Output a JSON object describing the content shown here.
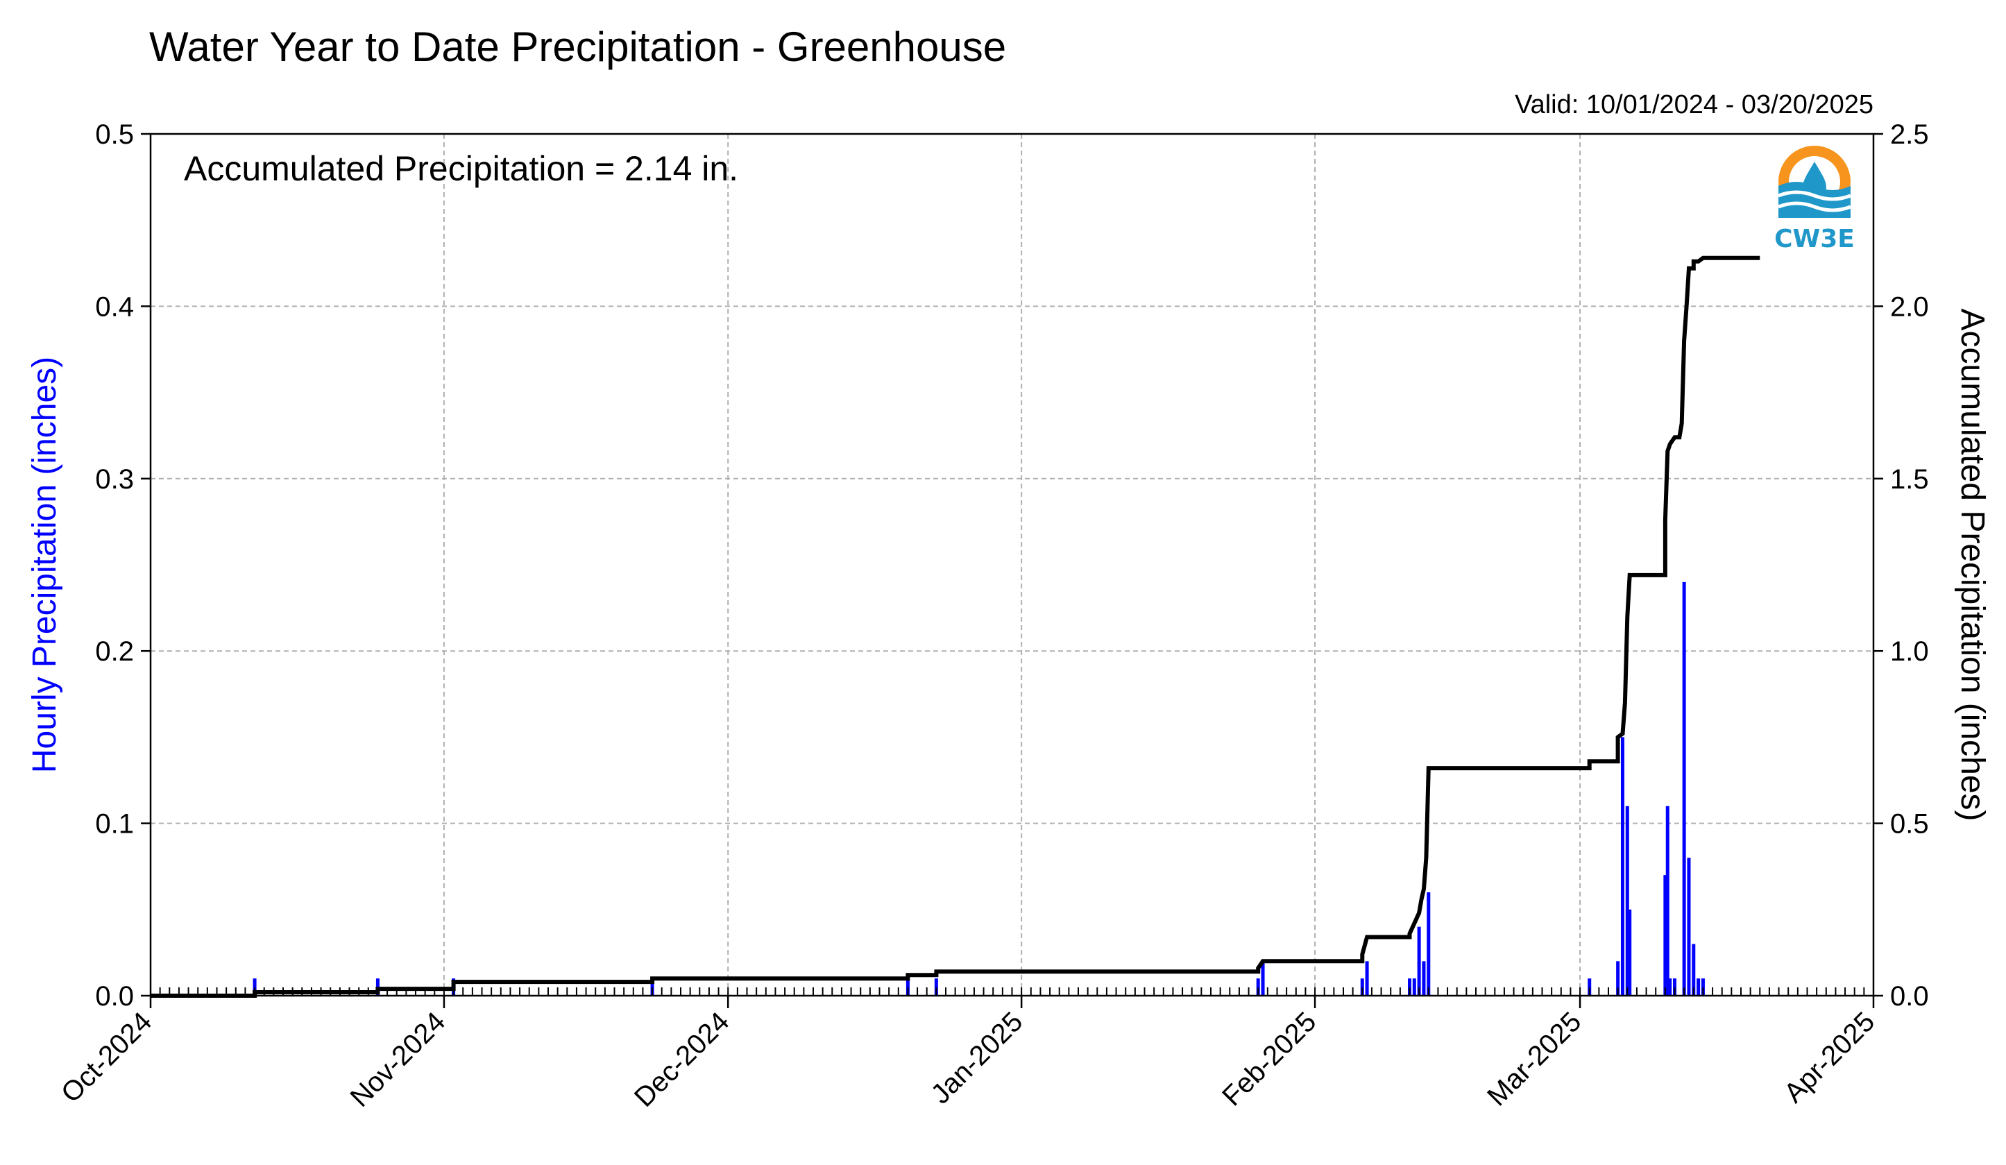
{
  "chart_data": {
    "type": "bar",
    "title": "Water Year to Date Precipitation - Greenhouse",
    "valid_text": "Valid: 10/01/2024 - 03/20/2025",
    "annotation": "Accumulated Precipitation = 2.14 in.",
    "logo_text": "CW3E",
    "ylabel_left": "Hourly Precipitation (inches)",
    "ylabel_right": "Accumulated Precipitation (inches)",
    "x_start": "2024-10-01",
    "x_end": "2025-04-01",
    "x_ticks": [
      {
        "date": "2024-10-01",
        "label": "Oct-2024"
      },
      {
        "date": "2024-11-01",
        "label": "Nov-2024"
      },
      {
        "date": "2024-12-01",
        "label": "Dec-2024"
      },
      {
        "date": "2025-01-01",
        "label": "Jan-2025"
      },
      {
        "date": "2025-02-01",
        "label": "Feb-2025"
      },
      {
        "date": "2025-03-01",
        "label": "Mar-2025"
      },
      {
        "date": "2025-04-01",
        "label": "Apr-2025"
      }
    ],
    "ylim_left": [
      0,
      0.5
    ],
    "yticks_left": [
      {
        "value": 0.0,
        "label": "0.0"
      },
      {
        "value": 0.1,
        "label": "0.1"
      },
      {
        "value": 0.2,
        "label": "0.2"
      },
      {
        "value": 0.3,
        "label": "0.3"
      },
      {
        "value": 0.4,
        "label": "0.4"
      },
      {
        "value": 0.5,
        "label": "0.5"
      }
    ],
    "ylim_right": [
      0,
      2.5
    ],
    "yticks_right": [
      {
        "value": 0.0,
        "label": "0.0"
      },
      {
        "value": 0.5,
        "label": "0.5"
      },
      {
        "value": 1.0,
        "label": "1.0"
      },
      {
        "value": 1.5,
        "label": "1.5"
      },
      {
        "value": 2.0,
        "label": "2.0"
      },
      {
        "value": 2.5,
        "label": "2.5"
      }
    ],
    "grid": true,
    "hourly_color": "#0000ff",
    "accum_color": "#000000",
    "left_label_color": "#0000ff",
    "series": [
      {
        "kind": "bars",
        "points": [
          {
            "date": "2024-10-12",
            "value": 0.01
          },
          {
            "date": "2024-10-25",
            "value": 0.01
          },
          {
            "date": "2024-11-02",
            "value": 0.01
          },
          {
            "date": "2024-11-23",
            "value": 0.01
          },
          {
            "date": "2024-12-20",
            "value": 0.01
          },
          {
            "date": "2024-12-23",
            "value": 0.01
          },
          {
            "date": "2025-01-26",
            "value": 0.01
          },
          {
            "date": "2025-01-26T12:00",
            "value": 0.02
          },
          {
            "date": "2025-02-06",
            "value": 0.01
          },
          {
            "date": "2025-02-06T12:00",
            "value": 0.02
          },
          {
            "date": "2025-02-11",
            "value": 0.01
          },
          {
            "date": "2025-02-11T12:00",
            "value": 0.01
          },
          {
            "date": "2025-02-12",
            "value": 0.04
          },
          {
            "date": "2025-02-12T12:00",
            "value": 0.02
          },
          {
            "date": "2025-02-13",
            "value": 0.06
          },
          {
            "date": "2025-03-02",
            "value": 0.01
          },
          {
            "date": "2025-03-05",
            "value": 0.02
          },
          {
            "date": "2025-03-05T12:00",
            "value": 0.15
          },
          {
            "date": "2025-03-06",
            "value": 0.11
          },
          {
            "date": "2025-03-06T06:00",
            "value": 0.05
          },
          {
            "date": "2025-03-10",
            "value": 0.07
          },
          {
            "date": "2025-03-10T06:00",
            "value": 0.11
          },
          {
            "date": "2025-03-10T12:00",
            "value": 0.01
          },
          {
            "date": "2025-03-11",
            "value": 0.01
          },
          {
            "date": "2025-03-12",
            "value": 0.24
          },
          {
            "date": "2025-03-12T12:00",
            "value": 0.08
          },
          {
            "date": "2025-03-13",
            "value": 0.03
          },
          {
            "date": "2025-03-13T12:00",
            "value": 0.01
          },
          {
            "date": "2025-03-14",
            "value": 0.01
          }
        ]
      },
      {
        "kind": "line",
        "points": [
          {
            "date": "2024-10-01",
            "value": 0.0
          },
          {
            "date": "2024-10-12",
            "value": 0.0
          },
          {
            "date": "2024-10-12",
            "value": 0.01
          },
          {
            "date": "2024-10-25",
            "value": 0.01
          },
          {
            "date": "2024-10-25",
            "value": 0.02
          },
          {
            "date": "2024-11-02",
            "value": 0.02
          },
          {
            "date": "2024-11-02",
            "value": 0.04
          },
          {
            "date": "2024-11-23",
            "value": 0.04
          },
          {
            "date": "2024-11-23",
            "value": 0.05
          },
          {
            "date": "2024-12-20",
            "value": 0.05
          },
          {
            "date": "2024-12-20",
            "value": 0.06
          },
          {
            "date": "2024-12-23",
            "value": 0.06
          },
          {
            "date": "2024-12-23",
            "value": 0.07
          },
          {
            "date": "2025-01-26",
            "value": 0.07
          },
          {
            "date": "2025-01-26",
            "value": 0.08
          },
          {
            "date": "2025-01-26T12:00",
            "value": 0.1
          },
          {
            "date": "2025-02-06",
            "value": 0.1
          },
          {
            "date": "2025-02-06",
            "value": 0.12
          },
          {
            "date": "2025-02-06T12:00",
            "value": 0.17
          },
          {
            "date": "2025-02-11",
            "value": 0.17
          },
          {
            "date": "2025-02-11",
            "value": 0.18
          },
          {
            "date": "2025-02-11T12:00",
            "value": 0.21
          },
          {
            "date": "2025-02-12",
            "value": 0.24
          },
          {
            "date": "2025-02-12T06:00",
            "value": 0.28
          },
          {
            "date": "2025-02-12T12:00",
            "value": 0.31
          },
          {
            "date": "2025-02-12T18:00",
            "value": 0.4
          },
          {
            "date": "2025-02-13",
            "value": 0.66
          },
          {
            "date": "2025-03-02",
            "value": 0.66
          },
          {
            "date": "2025-03-02",
            "value": 0.68
          },
          {
            "date": "2025-03-05",
            "value": 0.68
          },
          {
            "date": "2025-03-05",
            "value": 0.75
          },
          {
            "date": "2025-03-05T12:00",
            "value": 0.76
          },
          {
            "date": "2025-03-05T18:00",
            "value": 0.85
          },
          {
            "date": "2025-03-06",
            "value": 1.1
          },
          {
            "date": "2025-03-06T06:00",
            "value": 1.22
          },
          {
            "date": "2025-03-10",
            "value": 1.22
          },
          {
            "date": "2025-03-10",
            "value": 1.38
          },
          {
            "date": "2025-03-10T06:00",
            "value": 1.58
          },
          {
            "date": "2025-03-10T12:00",
            "value": 1.6
          },
          {
            "date": "2025-03-11",
            "value": 1.62
          },
          {
            "date": "2025-03-11T12:00",
            "value": 1.62
          },
          {
            "date": "2025-03-11T18:00",
            "value": 1.66
          },
          {
            "date": "2025-03-12",
            "value": 1.9
          },
          {
            "date": "2025-03-12T06:00",
            "value": 2.0
          },
          {
            "date": "2025-03-12T12:00",
            "value": 2.11
          },
          {
            "date": "2025-03-13",
            "value": 2.11
          },
          {
            "date": "2025-03-13",
            "value": 2.13
          },
          {
            "date": "2025-03-13T12:00",
            "value": 2.13
          },
          {
            "date": "2025-03-14",
            "value": 2.14
          },
          {
            "date": "2025-03-20",
            "value": 2.14
          }
        ]
      }
    ]
  }
}
